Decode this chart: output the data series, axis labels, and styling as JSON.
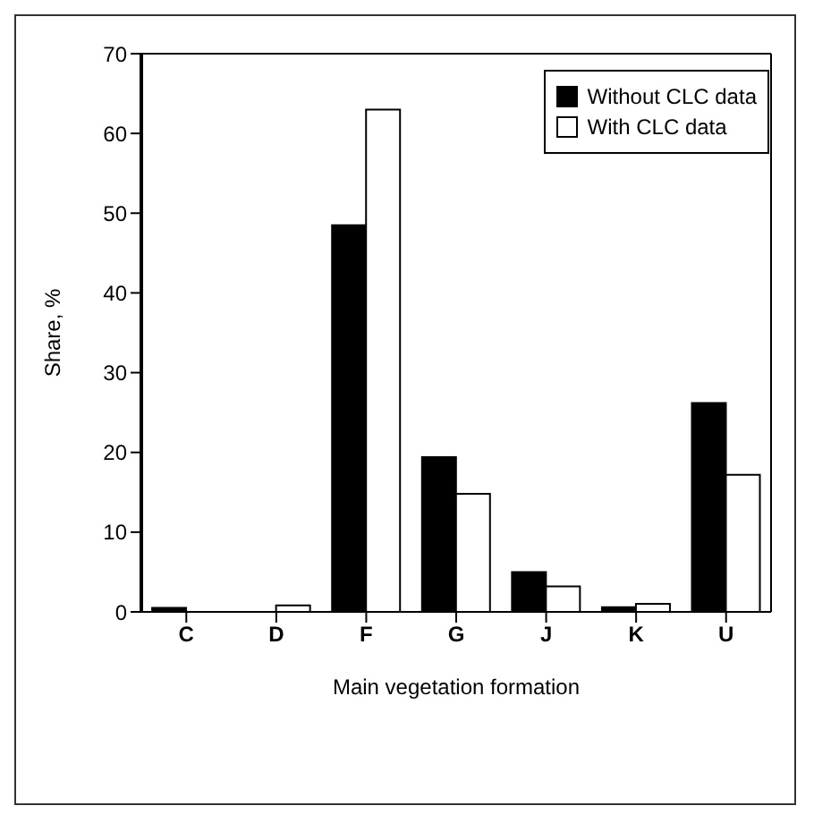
{
  "chart_data": {
    "type": "bar",
    "xlabel": "Main vegetation formation",
    "ylabel": "Share, %",
    "categories": [
      "C",
      "D",
      "F",
      "G",
      "J",
      "K",
      "U"
    ],
    "series": [
      {
        "name": "Without CLC data",
        "color": "#000000",
        "values": [
          0.5,
          0,
          48.5,
          19.4,
          5,
          0.6,
          26.2
        ]
      },
      {
        "name": "With CLC data",
        "color": "#ffffff",
        "values": [
          0,
          0.8,
          63,
          14.8,
          3.2,
          1,
          17.2
        ]
      }
    ],
    "ylim": [
      0,
      70
    ],
    "yticks": [
      0,
      10,
      20,
      30,
      40,
      50,
      60,
      70
    ],
    "legend": "top right",
    "grid": false
  }
}
